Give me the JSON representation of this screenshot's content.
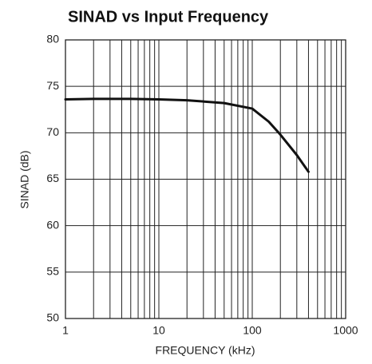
{
  "chart_data": {
    "type": "line",
    "title": "SINAD vs Input Frequency",
    "x_label": "FREQUENCY (kHz)",
    "y_label": "SINAD (dB)",
    "x_log": true,
    "grid": true,
    "minor_grid": true,
    "color": "#111111",
    "xlim": [
      1,
      1000
    ],
    "xticks": [
      1,
      10,
      100,
      1000
    ],
    "ylim": [
      50,
      80
    ],
    "yticks": [
      50,
      55,
      60,
      65,
      70,
      75,
      80
    ],
    "series": [
      {
        "name": "SINAD",
        "color": "#111111",
        "x": [
          1,
          2,
          5,
          10,
          20,
          50,
          100,
          150,
          200,
          300,
          400
        ],
        "values": [
          73.6,
          73.65,
          73.65,
          73.6,
          73.5,
          73.2,
          72.6,
          71.2,
          69.8,
          67.6,
          65.8
        ]
      }
    ]
  }
}
